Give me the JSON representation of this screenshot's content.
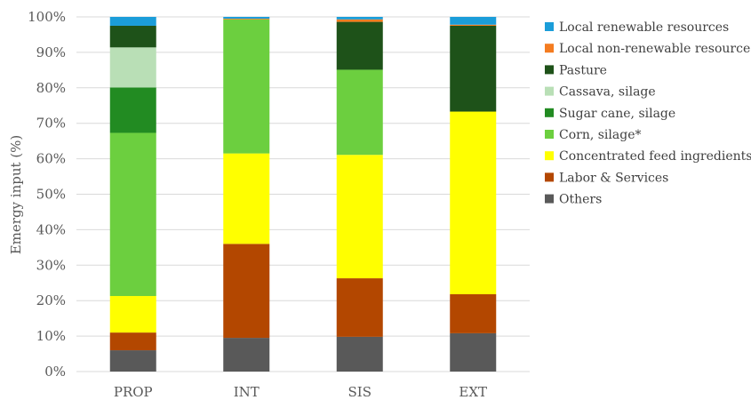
{
  "chart_data": {
    "type": "bar",
    "stacked": true,
    "title": "",
    "xlabel": "",
    "ylabel": "Emergy input (%)",
    "ylim": [
      0,
      100
    ],
    "yticks": [
      "0%",
      "10%",
      "20%",
      "30%",
      "40%",
      "50%",
      "60%",
      "70%",
      "80%",
      "90%",
      "100%"
    ],
    "grid": true,
    "legend_position": "right",
    "categories": [
      "PROP",
      "INT",
      "SIS",
      "EXT"
    ],
    "series": [
      {
        "name": "Others",
        "color": "#595959",
        "values": [
          6.0,
          9.5,
          9.8,
          10.8
        ]
      },
      {
        "name": "Labor & Services",
        "color": "#b34700",
        "values": [
          5.0,
          26.5,
          16.5,
          11.0
        ]
      },
      {
        "name": "Concentrated feed ingredients**",
        "color": "#ffff00",
        "values": [
          10.3,
          25.5,
          34.8,
          51.5
        ]
      },
      {
        "name": "Corn, silage*",
        "color": "#6ccf3f",
        "values": [
          46.0,
          37.8,
          24.0,
          0
        ]
      },
      {
        "name": "Sugar cane, silage",
        "color": "#228b22",
        "values": [
          12.8,
          0,
          0,
          0
        ]
      },
      {
        "name": "Cassava, silage",
        "color": "#b9dfb6",
        "values": [
          11.3,
          0,
          0,
          0
        ]
      },
      {
        "name": "Pasture",
        "color": "#1e5219",
        "values": [
          6.1,
          0,
          13.5,
          24.2
        ]
      },
      {
        "name": "Local non-renewable resources",
        "color": "#f47c20",
        "values": [
          0,
          0.2,
          0.7,
          0.3
        ]
      },
      {
        "name": "Local renewable resources",
        "color": "#1b9dd9",
        "values": [
          2.5,
          0.5,
          0.7,
          2.2
        ]
      }
    ]
  }
}
